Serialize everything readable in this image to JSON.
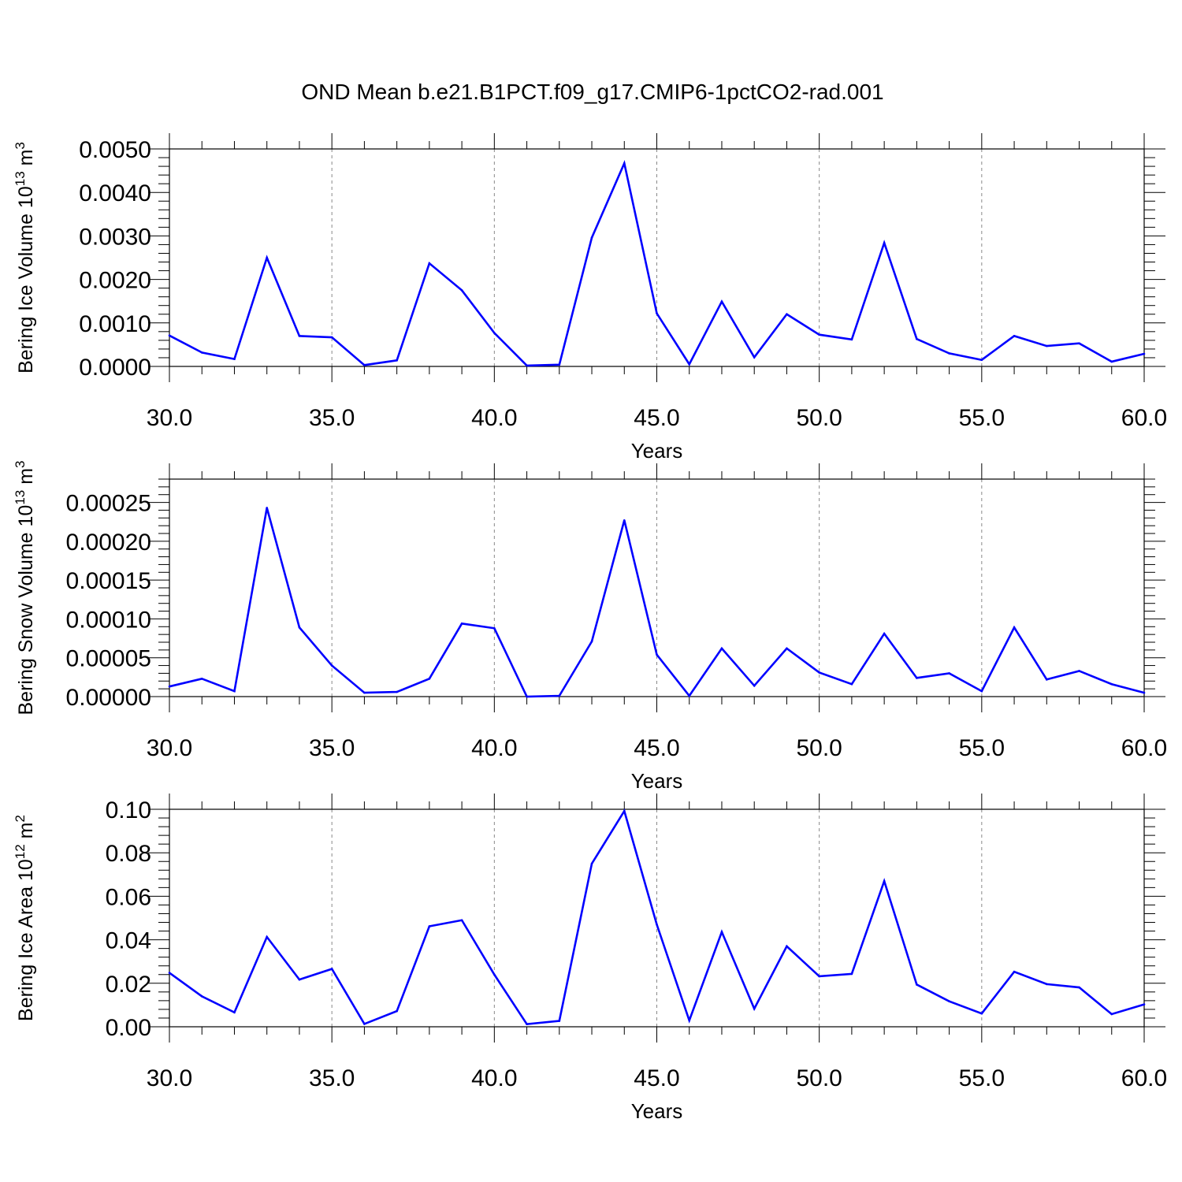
{
  "figure": {
    "title": "OND Mean b.e21.B1PCT.f09_g17.CMIP6-1pctCO2-rad.001"
  },
  "style": {
    "line_color": "#0000ff",
    "axis_color": "#000000",
    "grid_color": "#888888"
  },
  "chart_data": [
    {
      "type": "line",
      "xlabel": "Years",
      "ylabel": {
        "base": "Bering Ice Volume 10",
        "exp": "13",
        "unit": " m",
        "unit_exp": "3"
      },
      "xlim": [
        30,
        60
      ],
      "ylim": [
        0,
        0.005
      ],
      "xticks": [
        30,
        35,
        40,
        45,
        50,
        55,
        60
      ],
      "xtick_labels": [
        "30.0",
        "35.0",
        "40.0",
        "45.0",
        "50.0",
        "55.0",
        "60.0"
      ],
      "yticks": [
        0,
        0.001,
        0.002,
        0.003,
        0.004,
        0.005
      ],
      "ytick_labels": [
        "0.0000",
        "0.0010",
        "0.0020",
        "0.0030",
        "0.0040",
        "0.0050"
      ],
      "grid": "vertical dashed at major x ticks",
      "x": [
        30,
        31,
        32,
        33,
        34,
        35,
        36,
        37,
        38,
        39,
        40,
        41,
        42,
        43,
        44,
        45,
        46,
        47,
        48,
        49,
        50,
        51,
        52,
        53,
        54,
        55,
        56,
        57,
        58,
        59,
        60
      ],
      "values": [
        0.00071,
        0.00032,
        0.00017,
        0.0025,
        0.0007,
        0.00067,
        3e-05,
        0.00014,
        0.00237,
        0.00175,
        0.00077,
        2e-05,
        4e-05,
        0.00296,
        0.00467,
        0.00122,
        5e-05,
        0.00149,
        0.00021,
        0.0012,
        0.00073,
        0.00062,
        0.00284,
        0.00063,
        0.0003,
        0.00015,
        0.0007,
        0.00047,
        0.00053,
        0.00011,
        0.00029
      ]
    },
    {
      "type": "line",
      "xlabel": "Years",
      "ylabel": {
        "base": "Bering Snow Volume 10",
        "exp": "13",
        "unit": " m",
        "unit_exp": "3"
      },
      "xlim": [
        30,
        60
      ],
      "ylim": [
        0,
        0.00028
      ],
      "xticks": [
        30,
        35,
        40,
        45,
        50,
        55,
        60
      ],
      "xtick_labels": [
        "30.0",
        "35.0",
        "40.0",
        "45.0",
        "50.0",
        "55.0",
        "60.0"
      ],
      "yticks": [
        0,
        5e-05,
        0.0001,
        0.00015,
        0.0002,
        0.00025
      ],
      "ytick_labels": [
        "0.00000",
        "0.00005",
        "0.00010",
        "0.00015",
        "0.00020",
        "0.00025"
      ],
      "grid": "vertical dashed at major x ticks",
      "x": [
        30,
        31,
        32,
        33,
        34,
        35,
        36,
        37,
        38,
        39,
        40,
        41,
        42,
        43,
        44,
        45,
        46,
        47,
        48,
        49,
        50,
        51,
        52,
        53,
        54,
        55,
        56,
        57,
        58,
        59,
        60
      ],
      "values": [
        1.3e-05,
        2.3e-05,
        7e-06,
        0.000243,
        8.9e-05,
        4e-05,
        5e-06,
        6e-06,
        2.3e-05,
        9.4e-05,
        8.8e-05,
        0.0,
        1e-06,
        7.1e-05,
        0.000227,
        5.4e-05,
        1e-06,
        6.2e-05,
        1.4e-05,
        6.2e-05,
        3.1e-05,
        1.6e-05,
        8.1e-05,
        2.4e-05,
        3e-05,
        7e-06,
        8.9e-05,
        2.2e-05,
        3.3e-05,
        1.6e-05,
        5e-06
      ]
    },
    {
      "type": "line",
      "xlabel": "Years",
      "ylabel": {
        "base": "Bering Ice Area 10",
        "exp": "12",
        "unit": " m",
        "unit_exp": "2"
      },
      "xlim": [
        30,
        60
      ],
      "ylim": [
        0,
        0.1
      ],
      "xticks": [
        30,
        35,
        40,
        45,
        50,
        55,
        60
      ],
      "xtick_labels": [
        "30.0",
        "35.0",
        "40.0",
        "45.0",
        "50.0",
        "55.0",
        "60.0"
      ],
      "yticks": [
        0,
        0.02,
        0.04,
        0.06,
        0.08,
        0.1
      ],
      "ytick_labels": [
        "0.00",
        "0.02",
        "0.04",
        "0.06",
        "0.08",
        "0.10"
      ],
      "grid": "vertical dashed at major x ticks",
      "x": [
        30,
        31,
        32,
        33,
        34,
        35,
        36,
        37,
        38,
        39,
        40,
        41,
        42,
        43,
        44,
        45,
        46,
        47,
        48,
        49,
        50,
        51,
        52,
        53,
        54,
        55,
        56,
        57,
        58,
        59,
        60
      ],
      "values": [
        0.0248,
        0.014,
        0.0066,
        0.0413,
        0.0217,
        0.0266,
        0.0013,
        0.0072,
        0.0462,
        0.049,
        0.024,
        0.0012,
        0.0027,
        0.075,
        0.0992,
        0.047,
        0.0029,
        0.0436,
        0.0083,
        0.037,
        0.0232,
        0.0243,
        0.067,
        0.0194,
        0.0117,
        0.0061,
        0.0253,
        0.0196,
        0.0181,
        0.0058,
        0.0103
      ]
    }
  ]
}
